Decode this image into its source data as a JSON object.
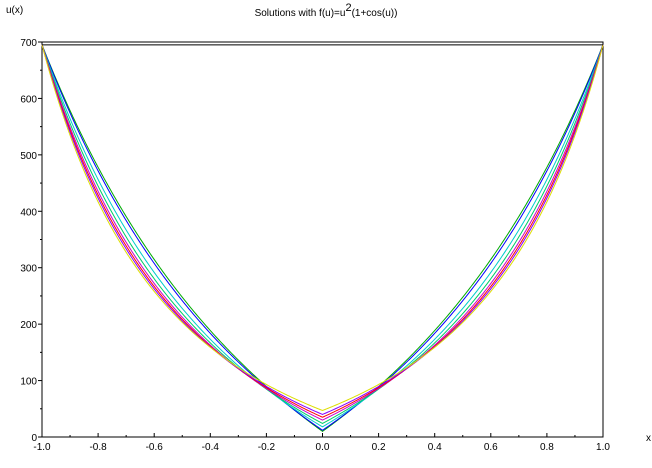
{
  "chart_data": {
    "type": "line",
    "title": {
      "prefix": "Solutions with f(u)=u",
      "superscript": "2",
      "suffix": "(1+cos(u))"
    },
    "xlabel": "x",
    "ylabel": "u(x)",
    "xlim": [
      -1.0,
      1.0
    ],
    "ylim": [
      0,
      700
    ],
    "xticks": [
      "-1.0",
      "-0.8",
      "-0.6",
      "-0.4",
      "-0.2",
      "0.0",
      "0.2",
      "0.4",
      "0.6",
      "0.8",
      "1.0"
    ],
    "yticks": [
      "0",
      "100",
      "200",
      "300",
      "400",
      "500",
      "600",
      "700"
    ],
    "grid": false,
    "boundary_value": 695,
    "series": [
      {
        "color": "#00aa00",
        "min_value": 10
      },
      {
        "color": "#0000ff",
        "min_value": 12
      },
      {
        "color": "#00cccc",
        "min_value": 18
      },
      {
        "color": "#00cc66",
        "min_value": 24
      },
      {
        "color": "#cc00cc",
        "min_value": 30
      },
      {
        "color": "#ff0000",
        "min_value": 35
      },
      {
        "color": "#8800ff",
        "min_value": 40
      },
      {
        "color": "#dddd00",
        "min_value": 47
      },
      {
        "color": "#000000",
        "min_value": 695
      }
    ]
  }
}
